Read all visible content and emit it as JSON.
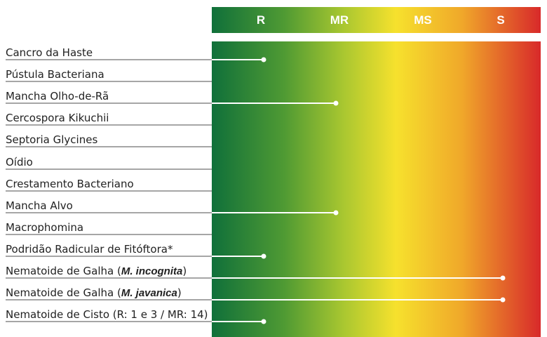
{
  "chart_data": {
    "type": "bar",
    "xlabel": "",
    "ylabel": "",
    "scale": [
      "R",
      "MR",
      "MS",
      "S"
    ],
    "colors": {
      "low": "#10703a",
      "mid": "#f6e12d",
      "high": "#d8292a",
      "line": "#ffffff",
      "rule": "#888888"
    },
    "rows": [
      {
        "label": "Cancro da Haste",
        "rating": "R"
      },
      {
        "label": "Pústula Bacteriana",
        "rating": ""
      },
      {
        "label": "Mancha Olho-de-Rã",
        "rating": "MR"
      },
      {
        "label": "Cercospora Kikuchii",
        "rating": ""
      },
      {
        "label": "Septoria Glycines",
        "rating": ""
      },
      {
        "label": "Oídio",
        "rating": ""
      },
      {
        "label": "Crestamento Bacteriano",
        "rating": ""
      },
      {
        "label": "Mancha Alvo",
        "rating": "MR"
      },
      {
        "label": "Macrophomina",
        "rating": ""
      },
      {
        "label": "Podridão Radicular de Fitóftora*",
        "rating": "R"
      },
      {
        "label_prefix": "Nematoide de Galha (",
        "label_species": "M. incognita",
        "label_suffix": ")",
        "rating": "S"
      },
      {
        "label_prefix": "Nematoide de Galha (",
        "label_species": "M. javanica",
        "label_suffix": ")",
        "rating": "S"
      },
      {
        "label": "Nematoide de Cisto (R: 1 e 3 / MR: 14)",
        "rating": "R"
      }
    ]
  }
}
